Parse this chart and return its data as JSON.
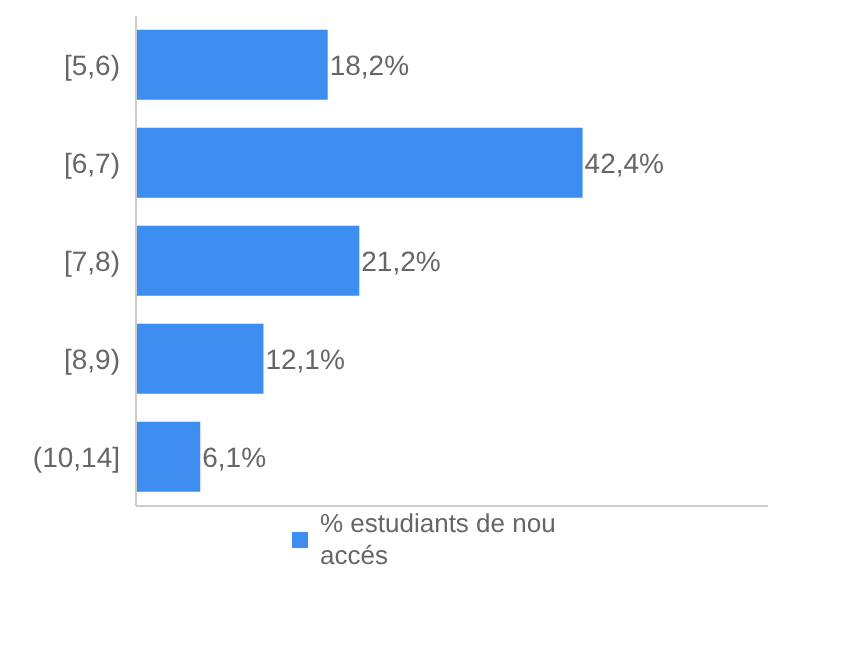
{
  "chart_data": {
    "type": "bar",
    "orientation": "horizontal",
    "categories": [
      "[5,6)",
      "[6,7)",
      "[7,8)",
      "[8,9)",
      "(10,14]"
    ],
    "series": [
      {
        "name": "% estudiants de nou accés",
        "color": "#3d8ef0",
        "values": [
          18.2,
          42.4,
          21.2,
          12.1,
          6.1
        ],
        "value_labels": [
          "18,2%",
          "42,4%",
          "21,2%",
          "12,1%",
          "6,1%"
        ]
      }
    ],
    "tick_labels": "y",
    "legend": "bottom"
  }
}
